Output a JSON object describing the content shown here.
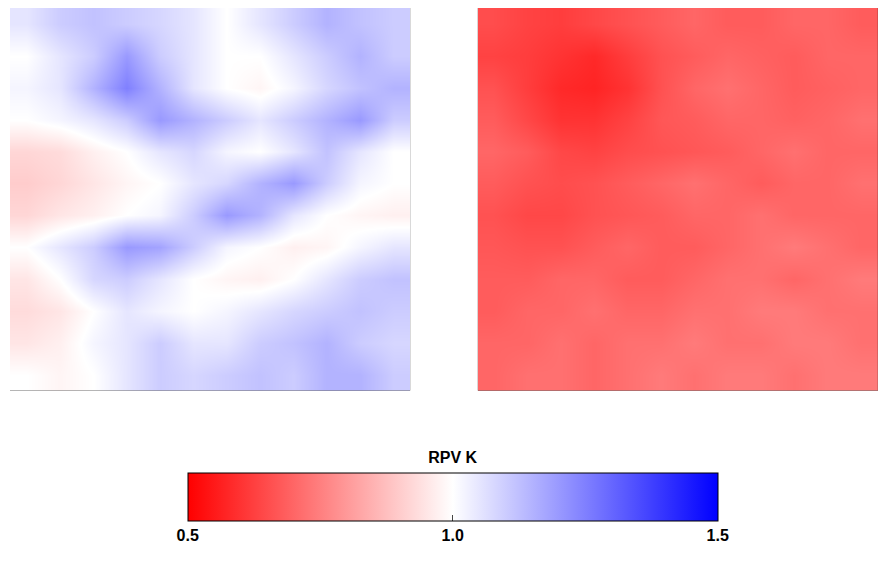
{
  "chart_data": {
    "type": "heatmap",
    "tick_labels": false,
    "panels": [
      {
        "z": [
          [
            1.05,
            1.1,
            1.12,
            1.1,
            1.08,
            1.05,
            1.0,
            1.05,
            1.1,
            1.15,
            1.12,
            1.1
          ],
          [
            1.0,
            1.05,
            1.1,
            1.2,
            1.1,
            1.05,
            1.0,
            1.0,
            1.05,
            1.1,
            1.15,
            1.1
          ],
          [
            1.02,
            1.05,
            1.15,
            1.25,
            1.15,
            1.05,
            1.0,
            0.98,
            1.02,
            1.08,
            1.12,
            1.15
          ],
          [
            1.0,
            1.02,
            1.05,
            1.1,
            1.2,
            1.15,
            1.1,
            1.05,
            1.1,
            1.15,
            1.2,
            1.1
          ],
          [
            0.92,
            0.93,
            0.97,
            1.0,
            1.05,
            1.08,
            1.02,
            1.0,
            1.05,
            1.12,
            1.05,
            1.0
          ],
          [
            0.9,
            0.92,
            0.95,
            0.98,
            1.0,
            1.05,
            1.08,
            1.15,
            1.2,
            1.1,
            1.02,
            1.0
          ],
          [
            0.92,
            0.95,
            0.97,
            1.0,
            1.02,
            1.1,
            1.2,
            1.15,
            1.05,
            1.0,
            0.98,
            0.97
          ],
          [
            1.0,
            1.05,
            1.1,
            1.2,
            1.18,
            1.1,
            1.02,
            1.0,
            0.97,
            0.98,
            1.02,
            1.05
          ],
          [
            0.95,
            1.0,
            1.08,
            1.1,
            1.05,
            1.0,
            0.98,
            0.97,
            1.0,
            1.05,
            1.1,
            1.12
          ],
          [
            0.93,
            0.95,
            1.0,
            1.05,
            1.02,
            1.0,
            1.02,
            1.05,
            1.08,
            1.1,
            1.12,
            1.1
          ],
          [
            0.95,
            0.97,
            1.02,
            1.05,
            1.1,
            1.05,
            1.05,
            1.1,
            1.12,
            1.15,
            1.1,
            1.08
          ],
          [
            1.0,
            0.98,
            1.0,
            1.05,
            1.1,
            1.08,
            1.1,
            1.12,
            1.1,
            1.15,
            1.15,
            1.1
          ]
        ]
      },
      {
        "z": [
          [
            0.65,
            0.63,
            0.62,
            0.64,
            0.66,
            0.68,
            0.7,
            0.68,
            0.68,
            0.7,
            0.7,
            0.68
          ],
          [
            0.63,
            0.62,
            0.6,
            0.58,
            0.62,
            0.66,
            0.68,
            0.7,
            0.69,
            0.68,
            0.7,
            0.7
          ],
          [
            0.66,
            0.62,
            0.58,
            0.57,
            0.6,
            0.66,
            0.7,
            0.72,
            0.7,
            0.68,
            0.69,
            0.7
          ],
          [
            0.68,
            0.64,
            0.6,
            0.6,
            0.63,
            0.67,
            0.68,
            0.7,
            0.7,
            0.69,
            0.7,
            0.72
          ],
          [
            0.7,
            0.68,
            0.64,
            0.63,
            0.65,
            0.66,
            0.67,
            0.68,
            0.7,
            0.72,
            0.7,
            0.7
          ],
          [
            0.68,
            0.66,
            0.65,
            0.66,
            0.68,
            0.7,
            0.72,
            0.7,
            0.68,
            0.7,
            0.7,
            0.72
          ],
          [
            0.66,
            0.64,
            0.64,
            0.66,
            0.67,
            0.68,
            0.7,
            0.7,
            0.72,
            0.7,
            0.7,
            0.7
          ],
          [
            0.67,
            0.66,
            0.66,
            0.68,
            0.7,
            0.68,
            0.68,
            0.7,
            0.72,
            0.74,
            0.72,
            0.7
          ],
          [
            0.68,
            0.68,
            0.7,
            0.7,
            0.68,
            0.68,
            0.7,
            0.72,
            0.72,
            0.7,
            0.72,
            0.74
          ],
          [
            0.68,
            0.7,
            0.7,
            0.72,
            0.7,
            0.7,
            0.72,
            0.72,
            0.74,
            0.74,
            0.72,
            0.72
          ],
          [
            0.7,
            0.7,
            0.72,
            0.7,
            0.72,
            0.72,
            0.74,
            0.72,
            0.72,
            0.74,
            0.74,
            0.72
          ],
          [
            0.7,
            0.72,
            0.72,
            0.7,
            0.72,
            0.74,
            0.72,
            0.74,
            0.74,
            0.72,
            0.74,
            0.74
          ]
        ]
      }
    ],
    "colorbar": {
      "title": "RPV K",
      "range": [
        0.5,
        1.5
      ],
      "ticks": [
        0.5,
        {
          "value": 1,
          "label": "1.0"
        },
        1.5
      ]
    }
  }
}
